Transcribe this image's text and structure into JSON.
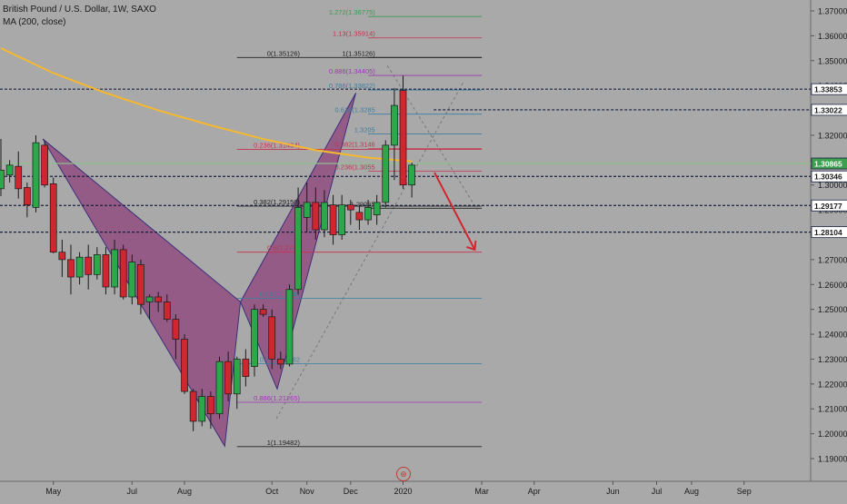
{
  "header": {
    "symbol_line": "British Pound / U.S. Dollar, 1W, SAXO",
    "ma_line": "MA (200, close)"
  },
  "colors": {
    "background": "#a9a9a9",
    "up_candle": "#2aa84a",
    "down_candle": "#d0262f",
    "ma_line": "#f5b82e",
    "pattern_fill": "#8b3a78",
    "arrow": "#d0262f"
  },
  "chart_data": {
    "type": "candlestick",
    "title": "",
    "y_axis_ticks": [
      1.19,
      1.2,
      1.21,
      1.22,
      1.23,
      1.24,
      1.25,
      1.26,
      1.27,
      1.28,
      1.29,
      1.3,
      1.31,
      1.32,
      1.33,
      1.34,
      1.35,
      1.36,
      1.37
    ],
    "y_axis_tick_labels": [
      "1.19000",
      "1.20000",
      "1.21000",
      "1.22000",
      "1.23000",
      "1.24000",
      "1.25000",
      "1.26000",
      "1.27000",
      "1.28000",
      "1.29000",
      "1.30000",
      "1.31000",
      "1.32000",
      "1.33000",
      "1.34000",
      "1.35000",
      "1.36000",
      "1.37000"
    ],
    "ylim": [
      1.184,
      1.376
    ],
    "x_axis_labels": [
      {
        "label": "May",
        "week": 6
      },
      {
        "label": "Jul",
        "week": 15
      },
      {
        "label": "Aug",
        "week": 21
      },
      {
        "label": "Oct",
        "week": 31
      },
      {
        "label": "Nov",
        "week": 35
      },
      {
        "label": "Dec",
        "week": 40
      },
      {
        "label": "2020",
        "week": 46
      },
      {
        "label": "Mar",
        "week": 55
      },
      {
        "label": "Apr",
        "week": 61
      },
      {
        "label": "Jun",
        "week": 70
      },
      {
        "label": "Jul",
        "week": 75
      },
      {
        "label": "Aug",
        "week": 79
      },
      {
        "label": "Sep",
        "week": 85
      }
    ],
    "candles": [
      {
        "o": 1.2985,
        "h": 1.3185,
        "l": 1.2955,
        "c": 1.306
      },
      {
        "o": 1.304,
        "h": 1.31,
        "l": 1.301,
        "c": 1.308
      },
      {
        "o": 1.3075,
        "h": 1.3135,
        "l": 1.2945,
        "c": 1.2985
      },
      {
        "o": 1.299,
        "h": 1.301,
        "l": 1.287,
        "c": 1.292
      },
      {
        "o": 1.291,
        "h": 1.32,
        "l": 1.289,
        "c": 1.317
      },
      {
        "o": 1.316,
        "h": 1.3175,
        "l": 1.299,
        "c": 1.3
      },
      {
        "o": 1.3005,
        "h": 1.303,
        "l": 1.2725,
        "c": 1.273
      },
      {
        "o": 1.273,
        "h": 1.278,
        "l": 1.263,
        "c": 1.27
      },
      {
        "o": 1.27,
        "h": 1.276,
        "l": 1.256,
        "c": 1.263
      },
      {
        "o": 1.263,
        "h": 1.273,
        "l": 1.26,
        "c": 1.271
      },
      {
        "o": 1.271,
        "h": 1.276,
        "l": 1.258,
        "c": 1.264
      },
      {
        "o": 1.264,
        "h": 1.275,
        "l": 1.262,
        "c": 1.272
      },
      {
        "o": 1.272,
        "h": 1.275,
        "l": 1.256,
        "c": 1.259
      },
      {
        "o": 1.259,
        "h": 1.278,
        "l": 1.256,
        "c": 1.274
      },
      {
        "o": 1.274,
        "h": 1.276,
        "l": 1.254,
        "c": 1.255
      },
      {
        "o": 1.255,
        "h": 1.272,
        "l": 1.252,
        "c": 1.269
      },
      {
        "o": 1.268,
        "h": 1.27,
        "l": 1.248,
        "c": 1.252
      },
      {
        "o": 1.253,
        "h": 1.256,
        "l": 1.246,
        "c": 1.255
      },
      {
        "o": 1.255,
        "h": 1.257,
        "l": 1.249,
        "c": 1.253
      },
      {
        "o": 1.253,
        "h": 1.256,
        "l": 1.245,
        "c": 1.246
      },
      {
        "o": 1.246,
        "h": 1.248,
        "l": 1.23,
        "c": 1.238
      },
      {
        "o": 1.238,
        "h": 1.24,
        "l": 1.216,
        "c": 1.217
      },
      {
        "o": 1.217,
        "h": 1.218,
        "l": 1.201,
        "c": 1.205
      },
      {
        "o": 1.205,
        "h": 1.218,
        "l": 1.203,
        "c": 1.215
      },
      {
        "o": 1.215,
        "h": 1.217,
        "l": 1.202,
        "c": 1.208
      },
      {
        "o": 1.208,
        "h": 1.231,
        "l": 1.206,
        "c": 1.229
      },
      {
        "o": 1.229,
        "h": 1.233,
        "l": 1.213,
        "c": 1.216
      },
      {
        "o": 1.216,
        "h": 1.231,
        "l": 1.21,
        "c": 1.23
      },
      {
        "o": 1.23,
        "h": 1.234,
        "l": 1.219,
        "c": 1.223
      },
      {
        "o": 1.227,
        "h": 1.252,
        "l": 1.223,
        "c": 1.25
      },
      {
        "o": 1.25,
        "h": 1.252,
        "l": 1.247,
        "c": 1.248
      },
      {
        "o": 1.247,
        "h": 1.25,
        "l": 1.226,
        "c": 1.23
      },
      {
        "o": 1.23,
        "h": 1.233,
        "l": 1.226,
        "c": 1.228
      },
      {
        "o": 1.228,
        "h": 1.26,
        "l": 1.227,
        "c": 1.258
      },
      {
        "o": 1.258,
        "h": 1.299,
        "l": 1.256,
        "c": 1.291
      },
      {
        "o": 1.287,
        "h": 1.301,
        "l": 1.281,
        "c": 1.293
      },
      {
        "o": 1.293,
        "h": 1.299,
        "l": 1.278,
        "c": 1.282
      },
      {
        "o": 1.282,
        "h": 1.298,
        "l": 1.279,
        "c": 1.293
      },
      {
        "o": 1.292,
        "h": 1.296,
        "l": 1.276,
        "c": 1.28
      },
      {
        "o": 1.28,
        "h": 1.296,
        "l": 1.278,
        "c": 1.292
      },
      {
        "o": 1.292,
        "h": 1.294,
        "l": 1.284,
        "c": 1.29
      },
      {
        "o": 1.289,
        "h": 1.292,
        "l": 1.282,
        "c": 1.286
      },
      {
        "o": 1.286,
        "h": 1.294,
        "l": 1.284,
        "c": 1.291
      },
      {
        "o": 1.288,
        "h": 1.296,
        "l": 1.284,
        "c": 1.293
      },
      {
        "o": 1.293,
        "h": 1.318,
        "l": 1.291,
        "c": 1.316
      },
      {
        "o": 1.316,
        "h": 1.339,
        "l": 1.302,
        "c": 1.332
      },
      {
        "o": 1.338,
        "h": 1.344,
        "l": 1.2985,
        "c": 1.3
      },
      {
        "o": 1.3,
        "h": 1.309,
        "l": 1.295,
        "c": 1.308
      }
    ],
    "moving_average": {
      "name": "MA (200, close)",
      "points": [
        [
          0,
          1.355
        ],
        [
          6,
          1.345
        ],
        [
          12,
          1.337
        ],
        [
          18,
          1.33
        ],
        [
          24,
          1.324
        ],
        [
          30,
          1.3185
        ],
        [
          36,
          1.314
        ],
        [
          42,
          1.311
        ],
        [
          47,
          1.3095
        ]
      ]
    },
    "price_levels": [
      {
        "value": 1.33853,
        "label": "1.33853",
        "style": "dashed",
        "color": "#1a2040"
      },
      {
        "value": 1.33022,
        "label": "1.33022",
        "style": "dashed",
        "color": "#1a2040"
      },
      {
        "value": 1.30865,
        "label": "1.30865",
        "style": "solid",
        "color": "#8fbf8f",
        "tag_color": "#3da04f"
      },
      {
        "value": 1.30346,
        "label": "1.30346",
        "style": "dashed",
        "color": "#1a2040"
      },
      {
        "value": 1.29177,
        "label": "1.29177",
        "style": "dashed",
        "color": "#1a2040"
      },
      {
        "value": 1.28104,
        "label": "1.28104",
        "style": "dashed",
        "color": "#1a2040"
      }
    ],
    "fib_lower": [
      {
        "text": "0(1.35126)",
        "value": 1.35126,
        "color": "#222222"
      },
      {
        "text": "0.236(1.31434)",
        "value": 1.31434,
        "color": "#c4334c"
      },
      {
        "text": "0.382(1.29150)",
        "value": 1.2915,
        "color": "#222222"
      },
      {
        "text": "0.5(1.2730",
        "value": 1.273,
        "color": "#c4334c"
      },
      {
        "text": "0.618(1.2545",
        "value": 1.2545,
        "color": "#3c7fa0"
      },
      {
        "text": "0.786(1.2282",
        "value": 1.2282,
        "color": "#3c7fa0"
      },
      {
        "text": "0.886(1.21265)",
        "value": 1.21265,
        "color": "#9b3ab0"
      },
      {
        "text": "1(1.19482)",
        "value": 1.19482,
        "color": "#222222"
      }
    ],
    "fib_upper": [
      {
        "text": "1.272(1.36775)",
        "value": 1.36775,
        "color": "#3d9a55"
      },
      {
        "text": "1.13(1.35914)",
        "value": 1.35914,
        "color": "#c4334c"
      },
      {
        "text": "1(1.35126)",
        "value": 1.35126,
        "color": "#222222"
      },
      {
        "text": "0.886(1.34405)",
        "value": 1.34405,
        "color": "#9b3ab0"
      },
      {
        "text": "0.786(1.33822)",
        "value": 1.33822,
        "color": "#3c7fa0"
      },
      {
        "text": "0.618(1.3285",
        "value": 1.3285,
        "color": "#3c7fa0"
      },
      {
        "text": "1.3205",
        "value": 1.3205,
        "color": "#3c7fa0"
      },
      {
        "text": "0.382(1.3146",
        "value": 1.3146,
        "color": "#c4334c"
      },
      {
        "text": "0.236(1.3055",
        "value": 1.3055,
        "color": "#c4334c"
      },
      {
        "text": "1.29065",
        "value": 1.29065,
        "color": "#222222"
      }
    ]
  },
  "tv_logo_glyph": "⊛"
}
